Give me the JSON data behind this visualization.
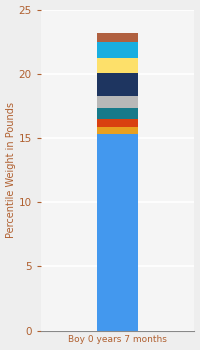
{
  "category": "Boy 0 years 7 months",
  "segments": [
    {
      "value": 15.3,
      "color": "#4398ee"
    },
    {
      "value": 0.55,
      "color": "#e8a020"
    },
    {
      "value": 0.6,
      "color": "#d94010"
    },
    {
      "value": 0.9,
      "color": "#177a8a"
    },
    {
      "value": 0.9,
      "color": "#b8b8b8"
    },
    {
      "value": 1.8,
      "color": "#1e3560"
    },
    {
      "value": 1.2,
      "color": "#fde06a"
    },
    {
      "value": 1.2,
      "color": "#19aee0"
    },
    {
      "value": 0.75,
      "color": "#b06040"
    }
  ],
  "ylabel": "Percentile Weight in Pounds",
  "xlabel": "Boy 0 years 7 months",
  "ylim": [
    0,
    25
  ],
  "yticks": [
    0,
    5,
    10,
    15,
    20,
    25
  ],
  "bg_color": "#eeeeee",
  "plot_bg_color": "#f5f5f5",
  "xlabel_color": "#b06030",
  "ylabel_color": "#b06030",
  "tick_color": "#b06030",
  "bar_width": 0.38
}
